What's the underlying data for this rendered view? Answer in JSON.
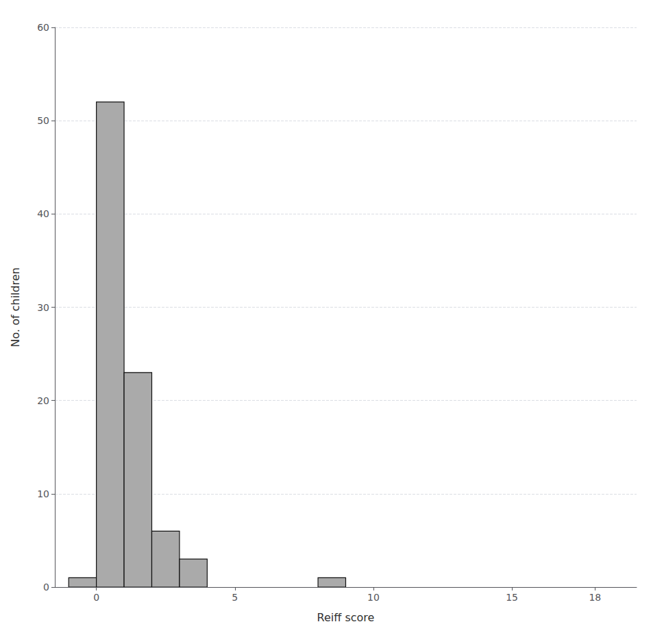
{
  "chart_data": {
    "type": "histogram",
    "bins": [
      -1,
      0,
      1,
      2,
      3,
      4,
      5,
      6,
      7,
      8,
      9,
      10
    ],
    "values": [
      1,
      52,
      23,
      6,
      3,
      0,
      0,
      0,
      0,
      1,
      0
    ],
    "color": "#aaaaaa",
    "xlabel": "Reiff score",
    "ylabel": "No. of children",
    "xlim": [
      -1.5,
      19.5
    ],
    "ylim": [
      0,
      60
    ],
    "xticks": [
      0,
      5,
      10,
      15,
      18
    ],
    "yticks": [
      0,
      10,
      20,
      30,
      40,
      50,
      60
    ],
    "grid": true
  }
}
